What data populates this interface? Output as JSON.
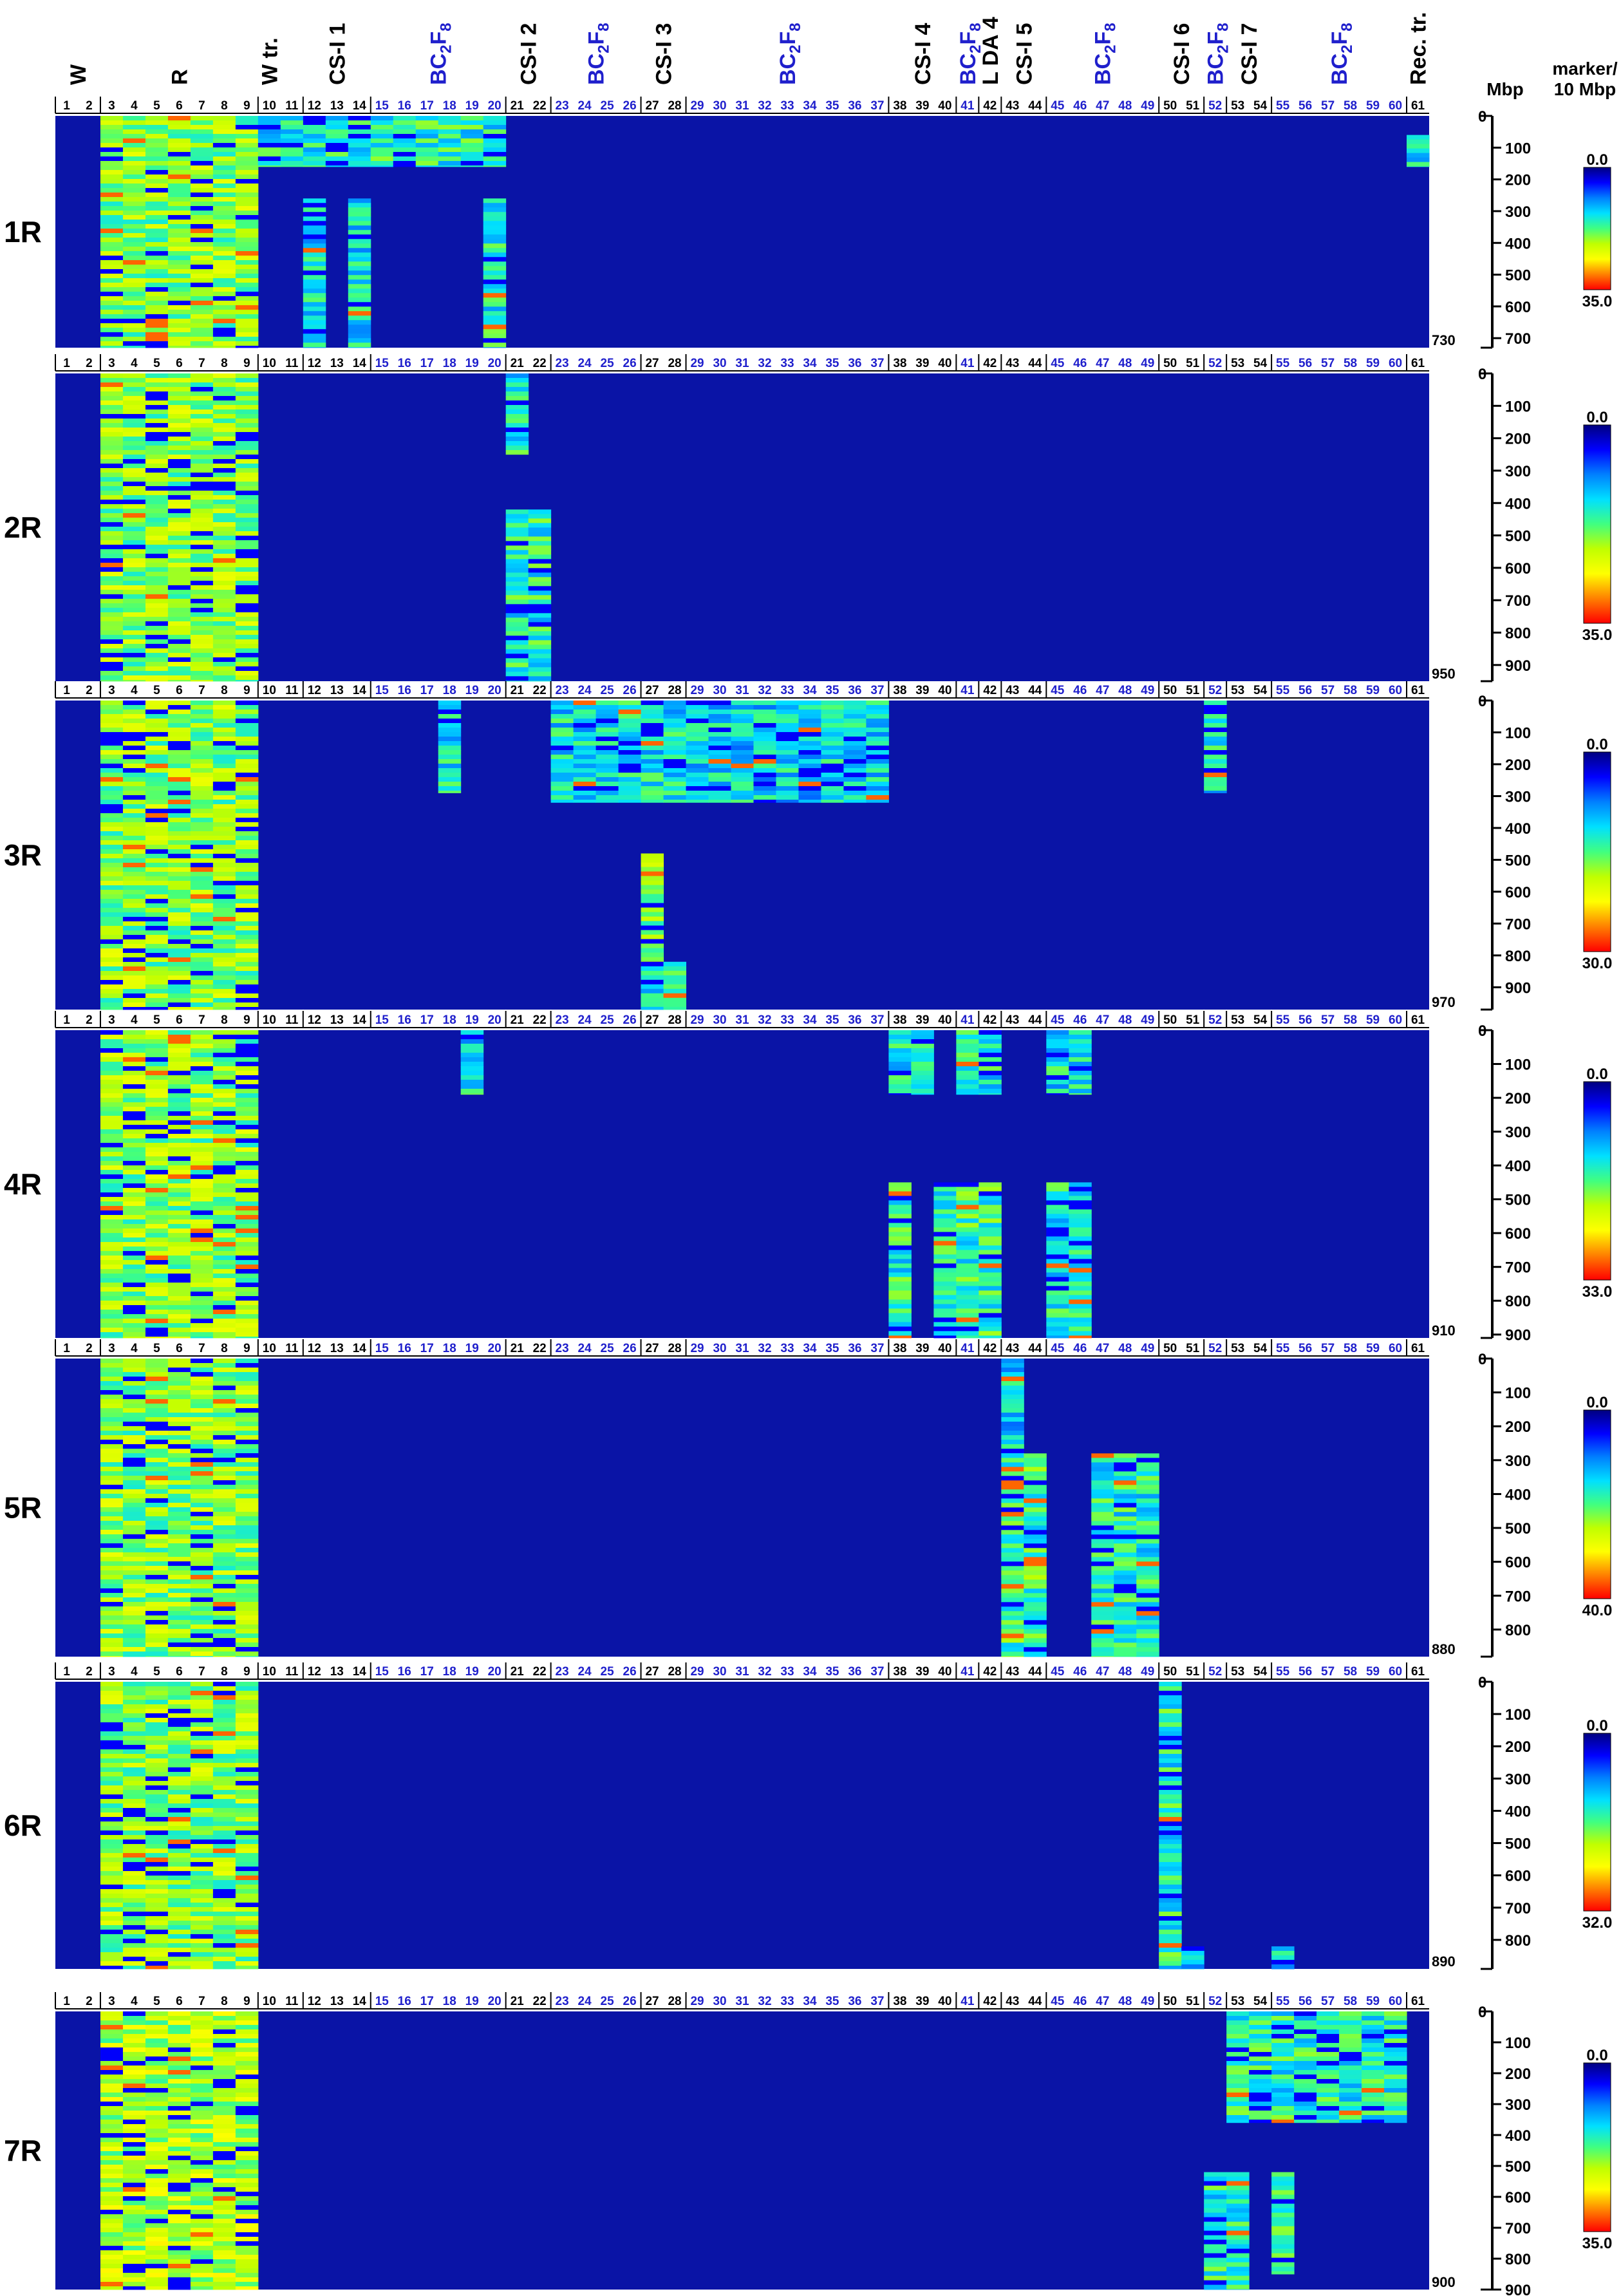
{
  "chart_data": {
    "type": "heatmap",
    "axis_unit_label": "Mbp",
    "colorbar_title": "marker/\n10 Mbp",
    "color_scale": [
      "#000080",
      "#0000ff",
      "#0080ff",
      "#00e0ff",
      "#40ff80",
      "#c0ff00",
      "#ffff00",
      "#ff8000",
      "#ff0000"
    ],
    "background_color": "#0a14a6",
    "lanes": [
      "1",
      "2",
      "3",
      "4",
      "5",
      "6",
      "7",
      "8",
      "9",
      "10",
      "11",
      "12",
      "13",
      "14",
      "15",
      "16",
      "17",
      "18",
      "19",
      "20",
      "21",
      "22",
      "23",
      "24",
      "25",
      "26",
      "27",
      "28",
      "29",
      "30",
      "31",
      "32",
      "33",
      "34",
      "35",
      "36",
      "37",
      "38",
      "39",
      "40",
      "41",
      "42",
      "43",
      "44",
      "45",
      "46",
      "47",
      "48",
      "49",
      "50",
      "51",
      "52",
      "53",
      "54",
      "55",
      "56",
      "57",
      "58",
      "59",
      "60",
      "61"
    ],
    "blue_lanes": [
      15,
      16,
      17,
      18,
      19,
      20,
      23,
      24,
      25,
      26,
      29,
      30,
      31,
      32,
      33,
      34,
      35,
      36,
      37,
      41,
      45,
      46,
      47,
      48,
      49,
      52,
      55,
      56,
      57,
      58,
      59,
      60
    ],
    "group_labels": [
      {
        "text": "W",
        "lanes": [
          1,
          2
        ],
        "color": "black"
      },
      {
        "text": "R",
        "lanes": [
          3,
          9
        ],
        "color": "black"
      },
      {
        "text": "W tr.",
        "lanes": [
          10,
          10
        ],
        "color": "black"
      },
      {
        "text": "CS-I 1",
        "lanes": [
          12,
          14
        ],
        "color": "black"
      },
      {
        "text": "BC2F8",
        "lanes": [
          15,
          20
        ],
        "color": "blue"
      },
      {
        "text": "CS-I 2",
        "lanes": [
          21,
          22
        ],
        "color": "black"
      },
      {
        "text": "BC2F8",
        "lanes": [
          23,
          26
        ],
        "color": "blue"
      },
      {
        "text": "CS-I 3",
        "lanes": [
          27,
          28
        ],
        "color": "black"
      },
      {
        "text": "BC2F8",
        "lanes": [
          29,
          37
        ],
        "color": "blue"
      },
      {
        "text": "CS-I 4",
        "lanes": [
          38,
          40
        ],
        "color": "black"
      },
      {
        "text": "BC2F8",
        "lanes": [
          41,
          41
        ],
        "color": "blue"
      },
      {
        "text": "L DA 4",
        "lanes": [
          42,
          42
        ],
        "color": "black"
      },
      {
        "text": "CS-I 5",
        "lanes": [
          43,
          44
        ],
        "color": "black"
      },
      {
        "text": "BC2F8",
        "lanes": [
          45,
          49
        ],
        "color": "blue"
      },
      {
        "text": "CS-I 6",
        "lanes": [
          50,
          51
        ],
        "color": "black"
      },
      {
        "text": "BC2F8",
        "lanes": [
          52,
          52
        ],
        "color": "blue"
      },
      {
        "text": "CS-I 7",
        "lanes": [
          53,
          54
        ],
        "color": "black"
      },
      {
        "text": "BC2F8",
        "lanes": [
          55,
          60
        ],
        "color": "blue"
      },
      {
        "text": "Rec. tr.",
        "lanes": [
          61,
          61
        ],
        "color": "black"
      }
    ],
    "panels": [
      {
        "chromosome": "1R",
        "length_mbp": 730,
        "ticks": [
          0,
          100,
          200,
          300,
          400,
          500,
          600,
          700
        ],
        "max_value": "35.0",
        "cbar_min": "0.0",
        "cbar_max": "35.0",
        "blocks": [
          {
            "lanes": [
              3,
              9
            ],
            "from": 0,
            "to": 730,
            "level": 0.55
          },
          {
            "lanes": [
              10,
              14
            ],
            "from": 0,
            "to": 160,
            "level": 0.4
          },
          {
            "lanes": [
              15,
              20
            ],
            "from": 0,
            "to": 160,
            "level": 0.42
          },
          {
            "lanes": [
              12,
              12
            ],
            "from": 260,
            "to": 730,
            "level": 0.38
          },
          {
            "lanes": [
              14,
              14
            ],
            "from": 260,
            "to": 730,
            "level": 0.38
          },
          {
            "lanes": [
              20,
              20
            ],
            "from": 260,
            "to": 730,
            "level": 0.4
          },
          {
            "lanes": [
              61,
              61
            ],
            "from": 60,
            "to": 160,
            "level": 0.35
          }
        ]
      },
      {
        "chromosome": "2R",
        "length_mbp": 950,
        "ticks": [
          0,
          100,
          200,
          300,
          400,
          500,
          600,
          700,
          800,
          900
        ],
        "max_value": "35.0",
        "cbar_min": "0.0",
        "cbar_max": "35.0",
        "blocks": [
          {
            "lanes": [
              3,
              9
            ],
            "from": 0,
            "to": 950,
            "level": 0.55
          },
          {
            "lanes": [
              21,
              21
            ],
            "from": 0,
            "to": 250,
            "level": 0.4
          },
          {
            "lanes": [
              21,
              22
            ],
            "from": 420,
            "to": 950,
            "level": 0.42
          }
        ]
      },
      {
        "chromosome": "3R",
        "length_mbp": 970,
        "ticks": [
          0,
          100,
          200,
          300,
          400,
          500,
          600,
          700,
          800,
          900
        ],
        "max_value": "30.0",
        "cbar_min": "0.0",
        "cbar_max": "30.0",
        "blocks": [
          {
            "lanes": [
              3,
              9
            ],
            "from": 0,
            "to": 970,
            "level": 0.55
          },
          {
            "lanes": [
              18,
              18
            ],
            "from": 0,
            "to": 290,
            "level": 0.38
          },
          {
            "lanes": [
              23,
              28
            ],
            "from": 0,
            "to": 320,
            "level": 0.38
          },
          {
            "lanes": [
              29,
              34
            ],
            "from": 0,
            "to": 320,
            "level": 0.36
          },
          {
            "lanes": [
              35,
              37
            ],
            "from": 0,
            "to": 320,
            "level": 0.38
          },
          {
            "lanes": [
              52,
              52
            ],
            "from": 0,
            "to": 290,
            "level": 0.38
          },
          {
            "lanes": [
              27,
              27
            ],
            "from": 480,
            "to": 970,
            "level": 0.55
          },
          {
            "lanes": [
              27,
              28
            ],
            "from": 820,
            "to": 970,
            "level": 0.4
          }
        ]
      },
      {
        "chromosome": "4R",
        "length_mbp": 910,
        "ticks": [
          0,
          100,
          200,
          300,
          400,
          500,
          600,
          700,
          800,
          900
        ],
        "max_value": "33.0",
        "cbar_min": "0.0",
        "cbar_max": "33.0",
        "blocks": [
          {
            "lanes": [
              3,
              9
            ],
            "from": 0,
            "to": 910,
            "level": 0.55
          },
          {
            "lanes": [
              19,
              19
            ],
            "from": 0,
            "to": 190,
            "level": 0.38
          },
          {
            "lanes": [
              38,
              39
            ],
            "from": 0,
            "to": 190,
            "level": 0.38
          },
          {
            "lanes": [
              41,
              42
            ],
            "from": 0,
            "to": 190,
            "level": 0.4
          },
          {
            "lanes": [
              45,
              46
            ],
            "from": 0,
            "to": 190,
            "level": 0.38
          },
          {
            "lanes": [
              38,
              38
            ],
            "from": 450,
            "to": 910,
            "level": 0.42
          },
          {
            "lanes": [
              40,
              42
            ],
            "from": 450,
            "to": 910,
            "level": 0.44
          },
          {
            "lanes": [
              45,
              46
            ],
            "from": 450,
            "to": 910,
            "level": 0.4
          }
        ]
      },
      {
        "chromosome": "5R",
        "length_mbp": 880,
        "ticks": [
          0,
          100,
          200,
          300,
          400,
          500,
          600,
          700,
          800
        ],
        "max_value": "40.0",
        "cbar_min": "0.0",
        "cbar_max": "40.0",
        "blocks": [
          {
            "lanes": [
              3,
              9
            ],
            "from": 0,
            "to": 880,
            "level": 0.55
          },
          {
            "lanes": [
              43,
              43
            ],
            "from": 0,
            "to": 280,
            "level": 0.35
          },
          {
            "lanes": [
              43,
              44
            ],
            "from": 280,
            "to": 880,
            "level": 0.46
          },
          {
            "lanes": [
              47,
              49
            ],
            "from": 280,
            "to": 880,
            "level": 0.42
          }
        ]
      },
      {
        "chromosome": "6R",
        "length_mbp": 890,
        "ticks": [
          0,
          100,
          200,
          300,
          400,
          500,
          600,
          700,
          800
        ],
        "max_value": "32.0",
        "cbar_min": "0.0",
        "cbar_max": "32.0",
        "blocks": [
          {
            "lanes": [
              3,
              9
            ],
            "from": 0,
            "to": 890,
            "level": 0.55
          },
          {
            "lanes": [
              50,
              50
            ],
            "from": 0,
            "to": 890,
            "level": 0.42
          },
          {
            "lanes": [
              51,
              51
            ],
            "from": 820,
            "to": 890,
            "level": 0.35
          },
          {
            "lanes": [
              55,
              55
            ],
            "from": 820,
            "to": 890,
            "level": 0.35
          }
        ]
      },
      {
        "chromosome": "7R",
        "length_mbp": 900,
        "ticks": [
          0,
          100,
          200,
          300,
          400,
          500,
          600,
          700,
          800,
          900
        ],
        "max_value": "35.0",
        "cbar_min": "0.0",
        "cbar_max": "35.0",
        "blocks": [
          {
            "lanes": [
              3,
              9
            ],
            "from": 0,
            "to": 900,
            "level": 0.6
          },
          {
            "lanes": [
              53,
              60
            ],
            "from": 0,
            "to": 360,
            "level": 0.42
          },
          {
            "lanes": [
              52,
              53
            ],
            "from": 520,
            "to": 900,
            "level": 0.42
          },
          {
            "lanes": [
              55,
              55
            ],
            "from": 520,
            "to": 850,
            "level": 0.42
          }
        ]
      }
    ]
  }
}
